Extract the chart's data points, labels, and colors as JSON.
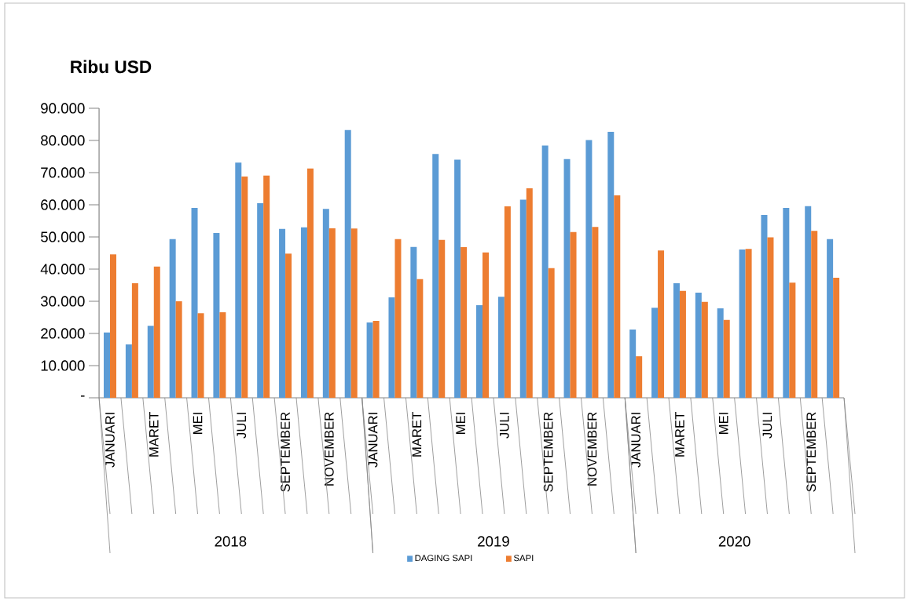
{
  "chart_data": {
    "type": "bar",
    "title": "Ribu USD",
    "categories": [
      "JANUARI",
      null,
      "MARET",
      null,
      "MEI",
      null,
      "JULI",
      null,
      "SEPTEMBER",
      null,
      "NOVEMBER",
      null,
      "JANUARI",
      null,
      "MARET",
      null,
      "MEI",
      null,
      "JULI",
      null,
      "SEPTEMBER",
      null,
      "NOVEMBER",
      null,
      "JANUARI",
      null,
      "MARET",
      null,
      "MEI",
      null,
      "JULI",
      null,
      "SEPTEMBER",
      null
    ],
    "series": [
      {
        "name": "DAGING SAPI",
        "color": "#5b9bd5",
        "values": [
          20300,
          16600,
          22400,
          49300,
          59000,
          51200,
          73100,
          60500,
          52500,
          53000,
          58700,
          83200,
          23400,
          31200,
          46900,
          75800,
          74000,
          28800,
          31400,
          61600,
          78400,
          74200,
          80100,
          82700,
          21200,
          28000,
          35600,
          32700,
          27800,
          46100,
          56800,
          59000,
          59600,
          49300
        ]
      },
      {
        "name": "SAPI",
        "color": "#ed7d31",
        "values": [
          44600,
          35600,
          40800,
          30000,
          26300,
          26600,
          68800,
          69100,
          44800,
          71300,
          52700,
          52600,
          23900,
          49300,
          36900,
          49100,
          46800,
          45200,
          59500,
          65100,
          40300,
          51500,
          53100,
          62900,
          12900,
          45800,
          33200,
          29800,
          24200,
          46300,
          49900,
          35800,
          51900,
          37300
        ]
      }
    ],
    "ylim": [
      0,
      90000
    ],
    "yticks": [
      {
        "value": 0,
        "label": "-"
      },
      {
        "value": 10000,
        "label": "10.000"
      },
      {
        "value": 20000,
        "label": "20.000"
      },
      {
        "value": 30000,
        "label": "30.000"
      },
      {
        "value": 40000,
        "label": "40.000"
      },
      {
        "value": 50000,
        "label": "50.000"
      },
      {
        "value": 60000,
        "label": "60.000"
      },
      {
        "value": 70000,
        "label": "70.000"
      },
      {
        "value": 80000,
        "label": "80.000"
      },
      {
        "value": 90000,
        "label": "90.000"
      }
    ],
    "annotations": [
      "2018",
      "2019",
      "2020"
    ],
    "legend": "bottom",
    "grid": false
  }
}
